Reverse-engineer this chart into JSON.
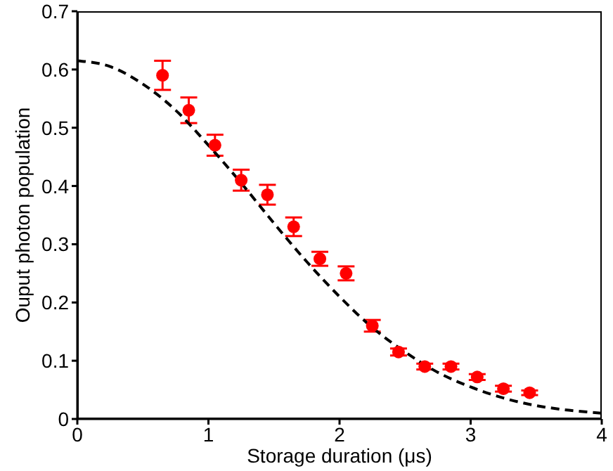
{
  "chart_data": {
    "type": "scatter",
    "xlabel": "Storage duration (μs)",
    "ylabel": "Ouput photon population",
    "xlim": [
      0,
      4
    ],
    "xticks": [
      0,
      1,
      2,
      3,
      4
    ],
    "ylim": [
      0,
      0.7
    ],
    "yticks": [
      0,
      0.1,
      0.2,
      0.3,
      0.4,
      0.5,
      0.6,
      0.7
    ],
    "grid": false,
    "legend": false,
    "marker": "circle",
    "series": [
      {
        "color": "#ff0000",
        "x": [
          0.65,
          0.85,
          1.05,
          1.25,
          1.45,
          1.65,
          1.85,
          2.05,
          2.25,
          2.45,
          2.65,
          2.85,
          3.05,
          3.25,
          3.45
        ],
        "values": [
          0.59,
          0.53,
          0.47,
          0.41,
          0.385,
          0.33,
          0.275,
          0.25,
          0.16,
          0.115,
          0.09,
          0.09,
          0.072,
          0.052,
          0.045
        ],
        "errors": [
          0.025,
          0.022,
          0.018,
          0.018,
          0.017,
          0.016,
          0.012,
          0.012,
          0.01,
          0.006,
          0.005,
          0.005,
          0.005,
          0.005,
          0.004
        ]
      },
      {
        "type": "line",
        "color": "#000000",
        "line_style": "dashed",
        "marker": "none",
        "x": [
          0,
          0.25,
          0.5,
          0.75,
          1,
          1.25,
          1.5,
          1.75,
          2,
          2.25,
          2.5,
          2.75,
          3,
          3.25,
          3.5,
          3.75,
          4
        ],
        "values": [
          0.615,
          0.605,
          0.575,
          0.53,
          0.47,
          0.405,
          0.336,
          0.27,
          0.21,
          0.157,
          0.115,
          0.08,
          0.055,
          0.036,
          0.023,
          0.015,
          0.01
        ]
      }
    ]
  }
}
